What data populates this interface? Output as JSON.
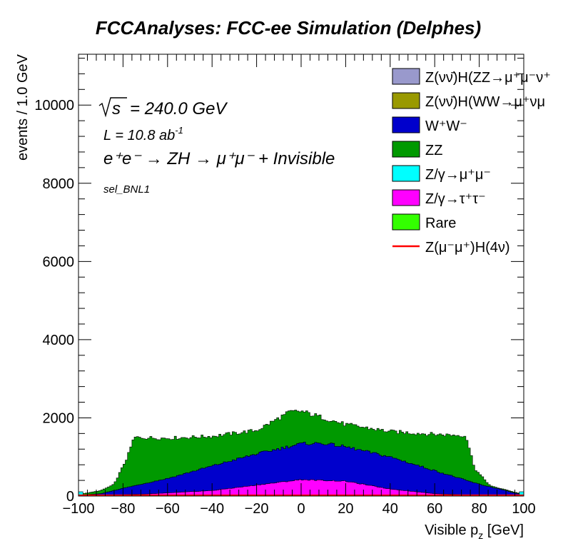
{
  "chart_data": {
    "type": "stacked-histogram",
    "title": "FCCAnalyses: FCC-ee Simulation (Delphes)",
    "xlabel": "Visible p",
    "xlabel_sub": "z",
    "xlabel_unit": " [GeV]",
    "ylabel": "events / 1.0 GeV",
    "xlim": [
      -100,
      100
    ],
    "ylim": [
      0,
      11300
    ],
    "x_ticks": [
      "−100",
      "−80",
      "−60",
      "−40",
      "−20",
      "0",
      "20",
      "40",
      "60",
      "80",
      "100"
    ],
    "y_ticks": [
      "0",
      "2000",
      "4000",
      "6000",
      "8000",
      "10000"
    ],
    "annotations": {
      "sqrt_s": "240.0 GeV",
      "lumi": "L = 10.8 ab",
      "lumi_exp": "-1",
      "process": "e⁺e⁻ → ZH → μ⁺μ⁻ + Invisible",
      "selection": "sel_BNL1"
    },
    "legend_position": "top-right",
    "bin_width": 1.0,
    "series": [
      {
        "name": "Z(νν̄)H(ZZ→μ⁺μ⁻ν⁺ν⁻)",
        "color": "#9999cc",
        "legend": "Z(νν̄)H(ZZ→μ⁺μ⁻ν⁺",
        "shape": "curve",
        "points": [
          [
            -100,
            0
          ],
          [
            100,
            0
          ]
        ]
      },
      {
        "name": "Z(νν̄)H(WW→μ⁺νμ⁻ν)",
        "color": "#999900",
        "legend": "Z(νν̄)H(WW→μ⁺νμ",
        "shape": "curve",
        "points": [
          [
            -100,
            20
          ],
          [
            100,
            20
          ]
        ]
      },
      {
        "name": "W⁺W⁻",
        "color": "#0000cc",
        "legend": "W⁺W⁻",
        "shape": "curve",
        "points": [
          [
            -100,
            20
          ],
          [
            -90,
            60
          ],
          [
            -80,
            200
          ],
          [
            -60,
            450
          ],
          [
            -40,
            770
          ],
          [
            -20,
            1080
          ],
          [
            0,
            1340
          ],
          [
            10,
            1350
          ],
          [
            20,
            1260
          ],
          [
            40,
            1000
          ],
          [
            60,
            650
          ],
          [
            80,
            300
          ],
          [
            90,
            170
          ],
          [
            95,
            90
          ],
          [
            100,
            30
          ]
        ]
      },
      {
        "name": "ZZ",
        "color": "#009900",
        "legend": "ZZ",
        "shape": "curve",
        "points": [
          [
            -100,
            40
          ],
          [
            -90,
            140
          ],
          [
            -84,
            300
          ],
          [
            -78,
            1000
          ],
          [
            -75,
            1500
          ],
          [
            -60,
            1480
          ],
          [
            -40,
            1530
          ],
          [
            -20,
            1680
          ],
          [
            -5,
            2150
          ],
          [
            0,
            2170
          ],
          [
            20,
            1830
          ],
          [
            40,
            1650
          ],
          [
            60,
            1580
          ],
          [
            74,
            1550
          ],
          [
            78,
            700
          ],
          [
            85,
            260
          ],
          [
            92,
            160
          ],
          [
            100,
            40
          ]
        ]
      },
      {
        "name": "Z/γ→μ⁺μ⁻",
        "color": "#00ffff",
        "legend": "Z/γ→μ⁺μ⁻",
        "shape": "edge",
        "points": [
          [
            -100,
            0
          ],
          [
            100,
            0
          ]
        ]
      },
      {
        "name": "Z/γ→τ⁺τ⁻",
        "color": "#ff00ff",
        "legend": "Z/γ→τ⁺τ⁻",
        "shape": "curve",
        "points": [
          [
            -100,
            0
          ],
          [
            -70,
            50
          ],
          [
            -40,
            140
          ],
          [
            -20,
            280
          ],
          [
            0,
            420
          ],
          [
            20,
            380
          ],
          [
            40,
            180
          ],
          [
            60,
            60
          ],
          [
            80,
            15
          ],
          [
            100,
            0
          ]
        ]
      },
      {
        "name": "Rare",
        "color": "#33ff00",
        "legend": "Rare",
        "shape": "curve",
        "points": [
          [
            -100,
            0
          ],
          [
            100,
            0
          ]
        ]
      },
      {
        "name": "Z(μ⁻μ⁺)H(4ν)",
        "color": "#ff0000",
        "legend": "Z(μ⁻μ⁺)H(4ν)",
        "shape": "line",
        "points": [
          [
            -100,
            20
          ],
          [
            100,
            20
          ]
        ]
      }
    ]
  }
}
